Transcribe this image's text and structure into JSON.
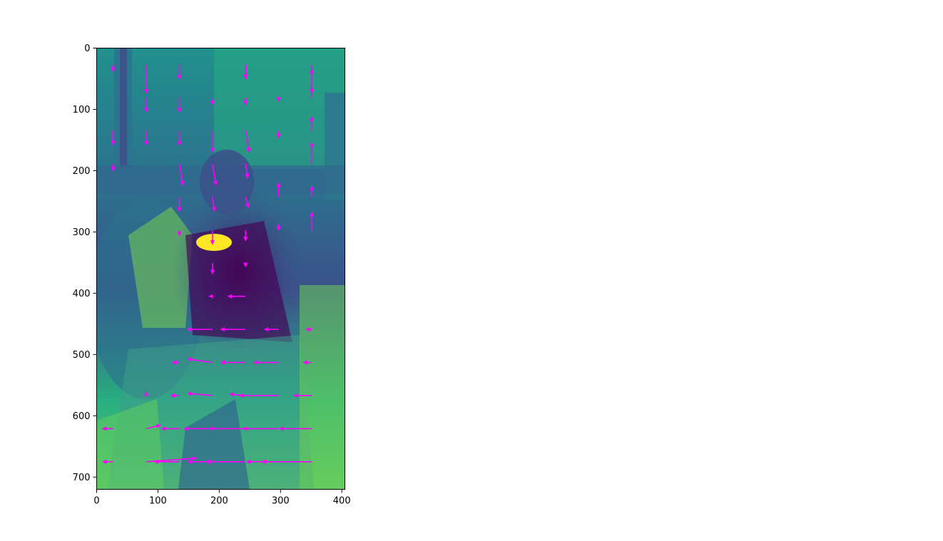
{
  "chart_data": {
    "type": "quiver",
    "title": "",
    "xlabel": "",
    "ylabel": "",
    "xlim": [
      0,
      405
    ],
    "ylim": [
      720,
      0
    ],
    "y_inverted": true,
    "grid": false,
    "legend": "none",
    "xticks": [
      "0",
      "100",
      "200",
      "300",
      "400"
    ],
    "yticks": [
      "0",
      "100",
      "200",
      "300",
      "400",
      "500",
      "600",
      "700"
    ],
    "background": {
      "kind": "grayscale image rendered with viridis colormap",
      "colormap": "viridis",
      "description": "motion image of a person posing in front of a brick wall"
    },
    "arrow_color": "#ff00ff",
    "grid_x": [
      27,
      81,
      135,
      189,
      243,
      297,
      351
    ],
    "grid_y": [
      27,
      81,
      135,
      189,
      243,
      297,
      351,
      405,
      459,
      513,
      567,
      621,
      675
    ],
    "vectors": [
      {
        "x": 27,
        "y": 27,
        "u": 0,
        "v": 1
      },
      {
        "x": 81,
        "y": 27,
        "u": 0,
        "v": 4
      },
      {
        "x": 135,
        "y": 27,
        "u": 0,
        "v": 2
      },
      {
        "x": 243,
        "y": 27,
        "u": 0,
        "v": 2
      },
      {
        "x": 351,
        "y": 27,
        "u": 0,
        "v": 4
      },
      {
        "x": 81,
        "y": 81,
        "u": 0,
        "v": 2
      },
      {
        "x": 135,
        "y": 81,
        "u": 0,
        "v": 2
      },
      {
        "x": 189,
        "y": 81,
        "u": 0,
        "v": 1
      },
      {
        "x": 243,
        "y": 81,
        "u": 0,
        "v": 1
      },
      {
        "x": 297,
        "y": 81,
        "u": 0,
        "v": 0.5
      },
      {
        "x": 351,
        "y": 81,
        "u": 0,
        "v": -4
      },
      {
        "x": 27,
        "y": 135,
        "u": 0,
        "v": 2
      },
      {
        "x": 81,
        "y": 135,
        "u": 0,
        "v": 2
      },
      {
        "x": 135,
        "y": 135,
        "u": 0,
        "v": 2
      },
      {
        "x": 189,
        "y": 135,
        "u": 0,
        "v": 3
      },
      {
        "x": 243,
        "y": 135,
        "u": 0.5,
        "v": 3
      },
      {
        "x": 297,
        "y": 135,
        "u": 0,
        "v": 1
      },
      {
        "x": 351,
        "y": 135,
        "u": 0,
        "v": -2
      },
      {
        "x": 27,
        "y": 189,
        "u": 0,
        "v": 1
      },
      {
        "x": 135,
        "y": 189,
        "u": 0.5,
        "v": 3
      },
      {
        "x": 189,
        "y": 189,
        "u": 0.5,
        "v": 3
      },
      {
        "x": 243,
        "y": 189,
        "u": 0.3,
        "v": 2
      },
      {
        "x": 297,
        "y": 243,
        "u": 0,
        "v": -2
      },
      {
        "x": 351,
        "y": 189,
        "u": 0,
        "v": -3
      },
      {
        "x": 135,
        "y": 243,
        "u": 0,
        "v": 2
      },
      {
        "x": 189,
        "y": 243,
        "u": 0.3,
        "v": 2
      },
      {
        "x": 243,
        "y": 243,
        "u": 0.4,
        "v": 1.5
      },
      {
        "x": 351,
        "y": 243,
        "u": 0,
        "v": -1.5
      },
      {
        "x": 135,
        "y": 297,
        "u": 0,
        "v": 0.8
      },
      {
        "x": 189,
        "y": 297,
        "u": 0,
        "v": 2
      },
      {
        "x": 243,
        "y": 297,
        "u": 0,
        "v": 1.5
      },
      {
        "x": 297,
        "y": 297,
        "u": 0,
        "v": -0.8
      },
      {
        "x": 351,
        "y": 297,
        "u": 0,
        "v": -2.5
      },
      {
        "x": 189,
        "y": 351,
        "u": 0,
        "v": 1.5
      },
      {
        "x": 243,
        "y": 351,
        "u": 0,
        "v": 0.5
      },
      {
        "x": 189,
        "y": 405,
        "u": -0.5,
        "v": 0
      },
      {
        "x": 243,
        "y": 405,
        "u": -2.5,
        "v": 0
      },
      {
        "x": 189,
        "y": 459,
        "u": -3.5,
        "v": 0
      },
      {
        "x": 243,
        "y": 459,
        "u": -3.5,
        "v": 0
      },
      {
        "x": 297,
        "y": 459,
        "u": -2,
        "v": 0
      },
      {
        "x": 351,
        "y": 459,
        "u": -0.8,
        "v": 0
      },
      {
        "x": 135,
        "y": 513,
        "u": -1,
        "v": 0
      },
      {
        "x": 189,
        "y": 513,
        "u": -3.5,
        "v": -0.5
      },
      {
        "x": 243,
        "y": 513,
        "u": -3.5,
        "v": 0
      },
      {
        "x": 297,
        "y": 513,
        "u": -3.5,
        "v": 0
      },
      {
        "x": 351,
        "y": 513,
        "u": -1.2,
        "v": 0
      },
      {
        "x": 81,
        "y": 567,
        "u": 0,
        "v": -0.5
      },
      {
        "x": 135,
        "y": 567,
        "u": -1.2,
        "v": 0
      },
      {
        "x": 189,
        "y": 567,
        "u": -3.5,
        "v": -0.3
      },
      {
        "x": 243,
        "y": 567,
        "u": -2.2,
        "v": -0.2
      },
      {
        "x": 297,
        "y": 567,
        "u": -5.5,
        "v": 0
      },
      {
        "x": 351,
        "y": 567,
        "u": -2.5,
        "v": 0
      },
      {
        "x": 27,
        "y": 621,
        "u": -1.5,
        "v": 0
      },
      {
        "x": 81,
        "y": 621,
        "u": 2,
        "v": -0.5
      },
      {
        "x": 135,
        "y": 621,
        "u": -2.5,
        "v": 0
      },
      {
        "x": 189,
        "y": 621,
        "u": -4,
        "v": 0
      },
      {
        "x": 243,
        "y": 621,
        "u": -5,
        "v": 0
      },
      {
        "x": 297,
        "y": 621,
        "u": -5,
        "v": 0
      },
      {
        "x": 351,
        "y": 621,
        "u": -4.5,
        "v": 0
      },
      {
        "x": 27,
        "y": 675,
        "u": -1.5,
        "v": 0
      },
      {
        "x": 81,
        "y": 675,
        "u": 7,
        "v": -0.5
      },
      {
        "x": 135,
        "y": 675,
        "u": -3.5,
        "v": 0
      },
      {
        "x": 189,
        "y": 675,
        "u": -3.5,
        "v": 0
      },
      {
        "x": 243,
        "y": 675,
        "u": -5.5,
        "v": 0
      },
      {
        "x": 297,
        "y": 675,
        "u": -4.5,
        "v": 0
      },
      {
        "x": 351,
        "y": 675,
        "u": -7,
        "v": 0
      }
    ]
  }
}
